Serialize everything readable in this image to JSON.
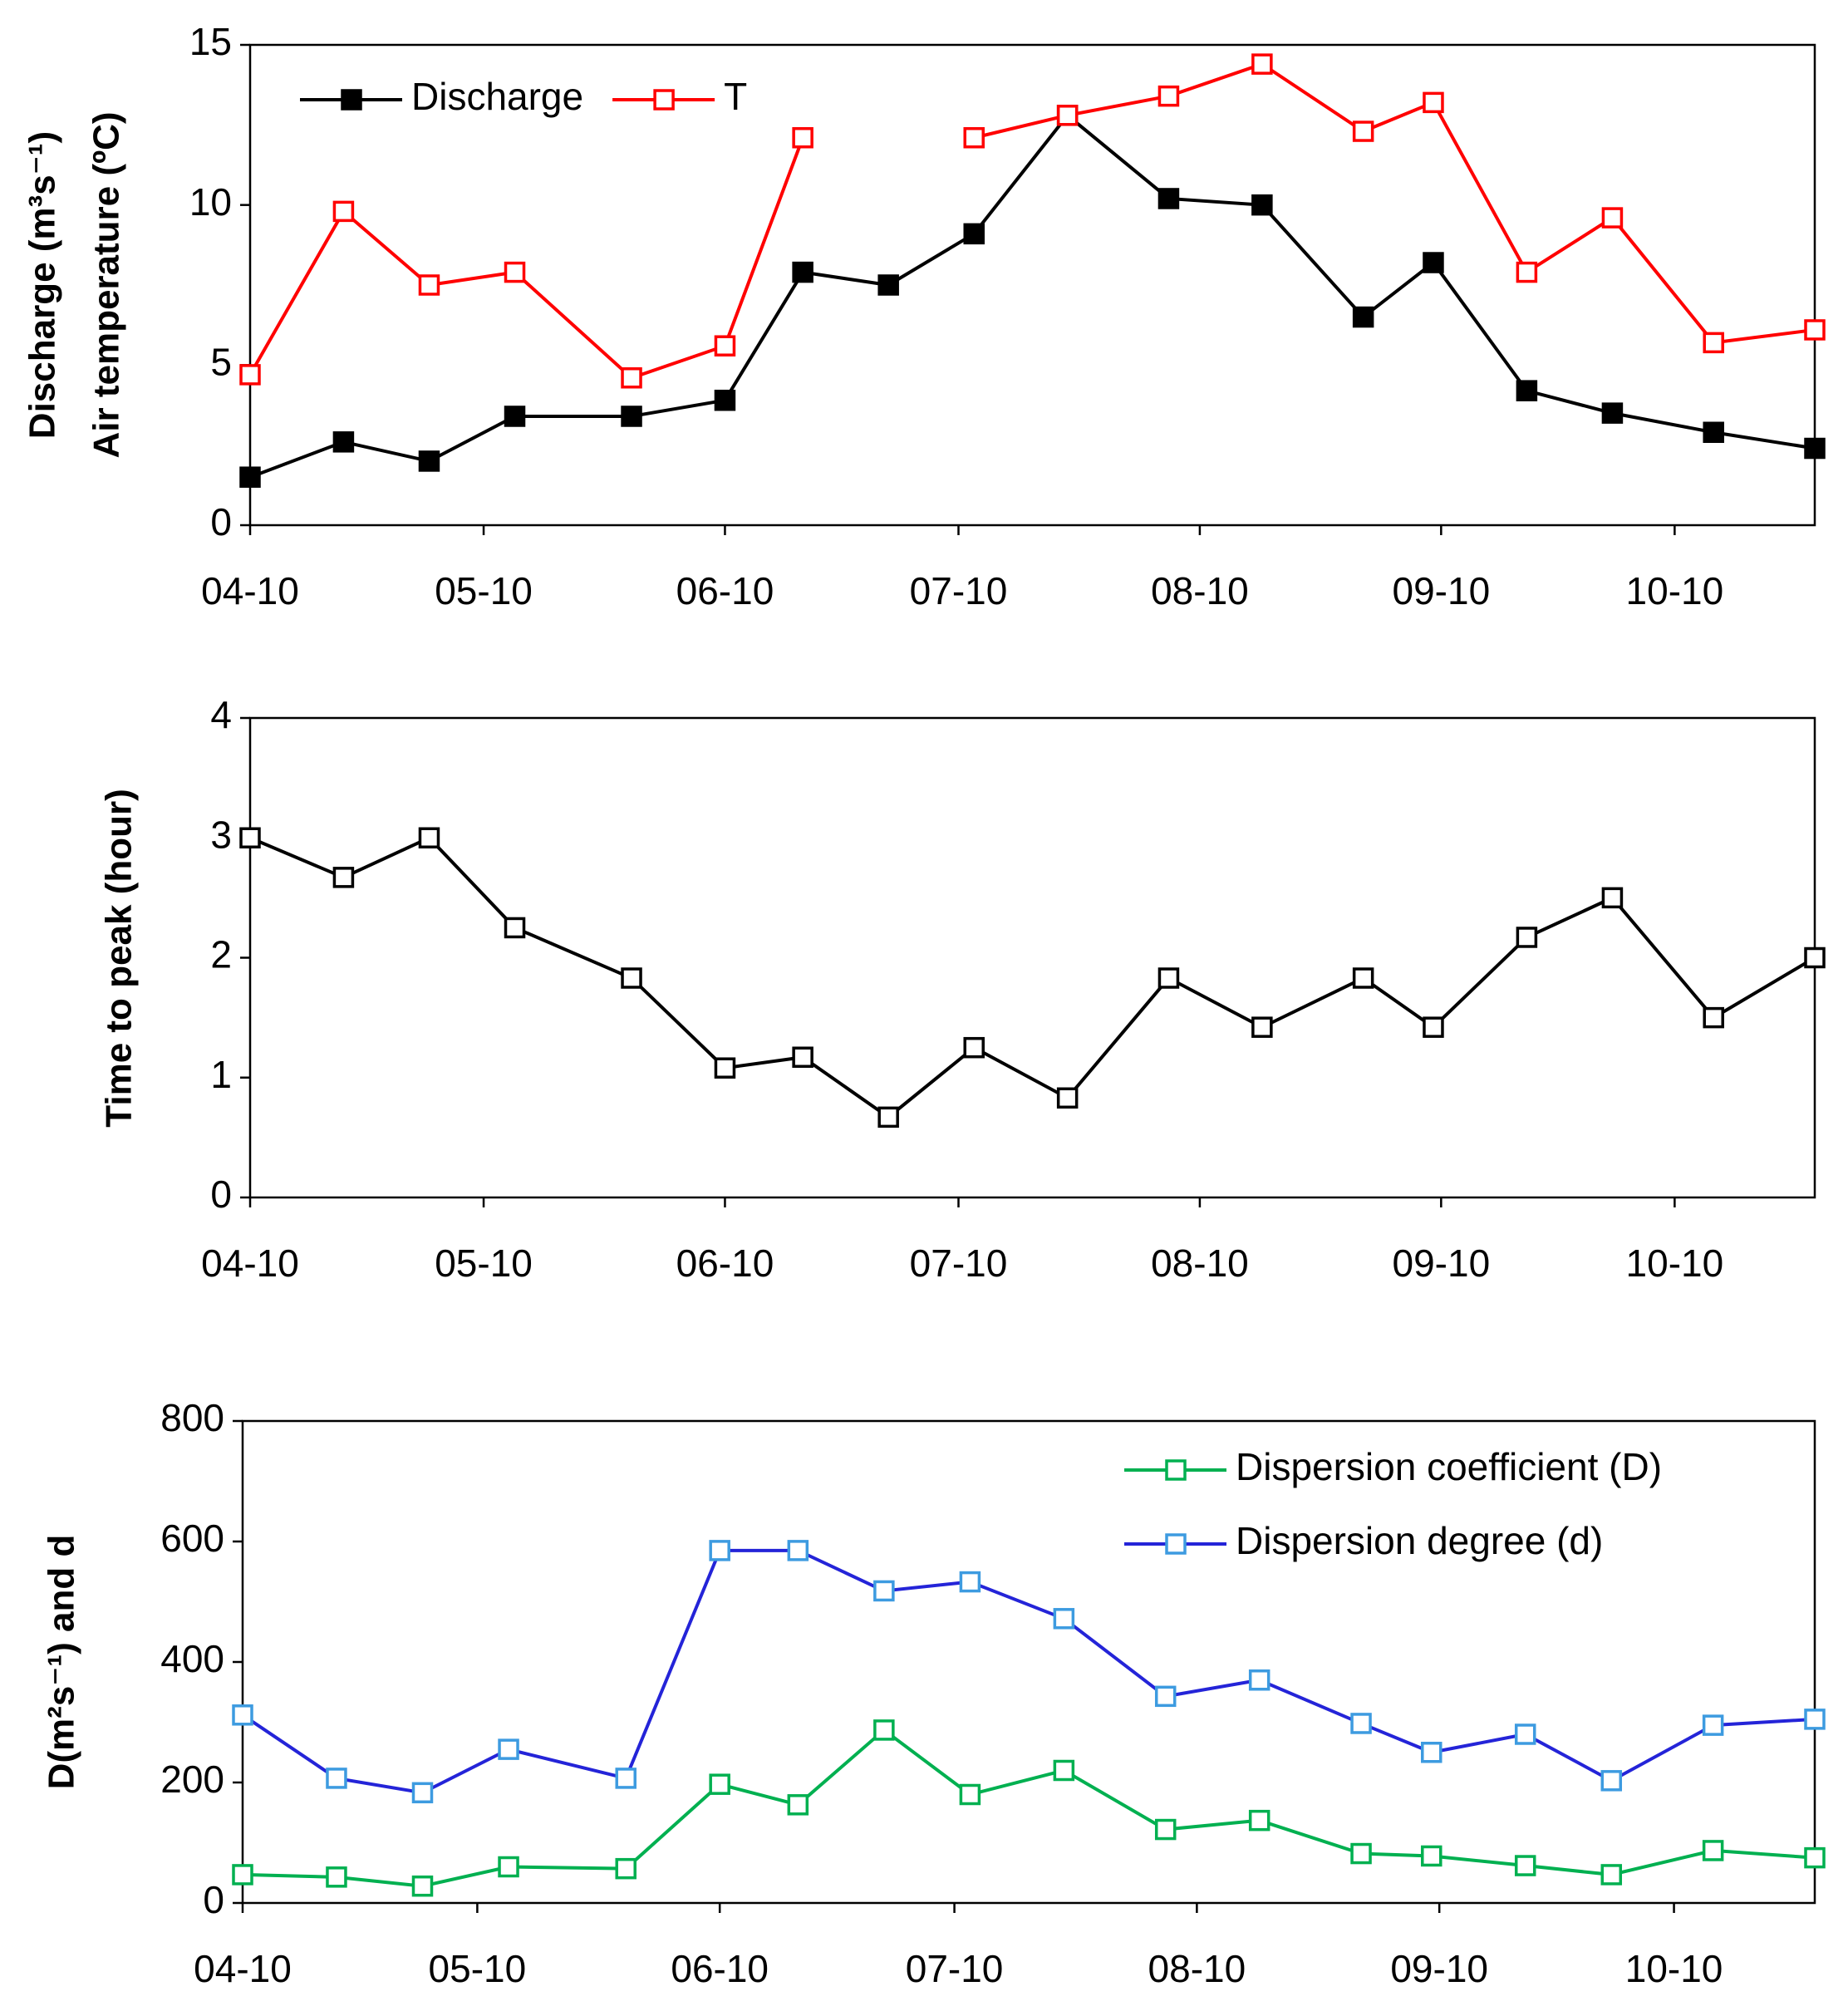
{
  "chart_data": [
    {
      "type": "line",
      "ylabel": [
        "Discharge (m³s⁻¹)",
        "Air temperature (ºC)"
      ],
      "x": [
        "04-10",
        "04-22",
        "05-03",
        "05-14",
        "05-29",
        "06-10",
        "06-20",
        "07-01",
        "07-12",
        "07-24",
        "08-06",
        "08-18",
        "08-31",
        "09-09",
        "09-21",
        "10-02",
        "10-15",
        "10-28"
      ],
      "xlim": [
        "04-10",
        "10-28"
      ],
      "xticks": [
        "04-10",
        "05-10",
        "06-10",
        "07-10",
        "08-10",
        "09-10",
        "10-10"
      ],
      "ylim": [
        0,
        15
      ],
      "yticks": [
        0,
        5,
        10,
        15
      ],
      "legend": "upper left",
      "legend_orientation": "horizontal",
      "series": [
        {
          "name": "Discharge",
          "color": "#000000",
          "marker_color": "#000000",
          "marker_fill": "filled",
          "values": [
            1.5,
            2.6,
            2.0,
            3.4,
            3.4,
            3.9,
            7.9,
            7.5,
            9.1,
            12.8,
            10.2,
            10.0,
            6.5,
            8.2,
            4.2,
            3.5,
            2.9,
            2.4
          ]
        },
        {
          "name": "T",
          "color": "#ff0000",
          "marker_color": "#ff0000",
          "marker_fill": "hollow",
          "values": [
            4.7,
            9.8,
            7.5,
            7.9,
            4.6,
            5.6,
            12.1,
            null,
            12.1,
            12.8,
            13.4,
            14.4,
            12.3,
            13.2,
            7.9,
            9.6,
            5.7,
            6.1
          ]
        }
      ]
    },
    {
      "type": "line",
      "ylabel": [
        "Time to peak (hour)"
      ],
      "x": [
        "04-10",
        "04-22",
        "05-03",
        "05-14",
        "05-29",
        "06-10",
        "06-20",
        "07-01",
        "07-12",
        "07-24",
        "08-06",
        "08-18",
        "08-31",
        "09-09",
        "09-21",
        "10-02",
        "10-15",
        "10-28"
      ],
      "xlim": [
        "04-10",
        "10-28"
      ],
      "xticks": [
        "04-10",
        "05-10",
        "06-10",
        "07-10",
        "08-10",
        "09-10",
        "10-10"
      ],
      "ylim": [
        0,
        4
      ],
      "yticks": [
        0,
        1,
        2,
        3,
        4
      ],
      "series": [
        {
          "color": "#000000",
          "marker_color": "#000000",
          "marker_fill": "hollow",
          "values": [
            3.0,
            2.67,
            3.0,
            2.25,
            1.83,
            1.08,
            1.17,
            0.67,
            1.25,
            0.83,
            1.83,
            1.42,
            1.83,
            1.42,
            2.17,
            2.5,
            1.5,
            2.0
          ]
        }
      ]
    },
    {
      "type": "line",
      "ylabel": [
        "D(m²s⁻¹) and d"
      ],
      "x": [
        "04-10",
        "04-22",
        "05-03",
        "05-14",
        "05-29",
        "06-10",
        "06-20",
        "07-01",
        "07-12",
        "07-24",
        "08-06",
        "08-18",
        "08-31",
        "09-09",
        "09-21",
        "10-02",
        "10-15",
        "10-28"
      ],
      "xlim": [
        "04-10",
        "10-28"
      ],
      "xticks": [
        "04-10",
        "05-10",
        "06-10",
        "07-10",
        "08-10",
        "09-10",
        "10-10"
      ],
      "ylim": [
        0,
        800
      ],
      "yticks": [
        0,
        200,
        400,
        600,
        800
      ],
      "legend": "upper right",
      "legend_orientation": "vertical",
      "series": [
        {
          "name": "Dispersion coefficient (D)",
          "color": "#00b050",
          "marker_color": "#00b050",
          "marker_fill": "hollow",
          "values": [
            47,
            43,
            28,
            60,
            57,
            197,
            163,
            287,
            180,
            220,
            122,
            137,
            82,
            78,
            62,
            47,
            87,
            75
          ]
        },
        {
          "name": "Dispersion degree (d)",
          "color": "#2424d8",
          "marker_color": "#3d9be0",
          "marker_fill": "hollow",
          "values": [
            312,
            207,
            183,
            255,
            207,
            585,
            585,
            518,
            533,
            472,
            343,
            370,
            298,
            250,
            280,
            203,
            295,
            305
          ]
        }
      ]
    }
  ]
}
